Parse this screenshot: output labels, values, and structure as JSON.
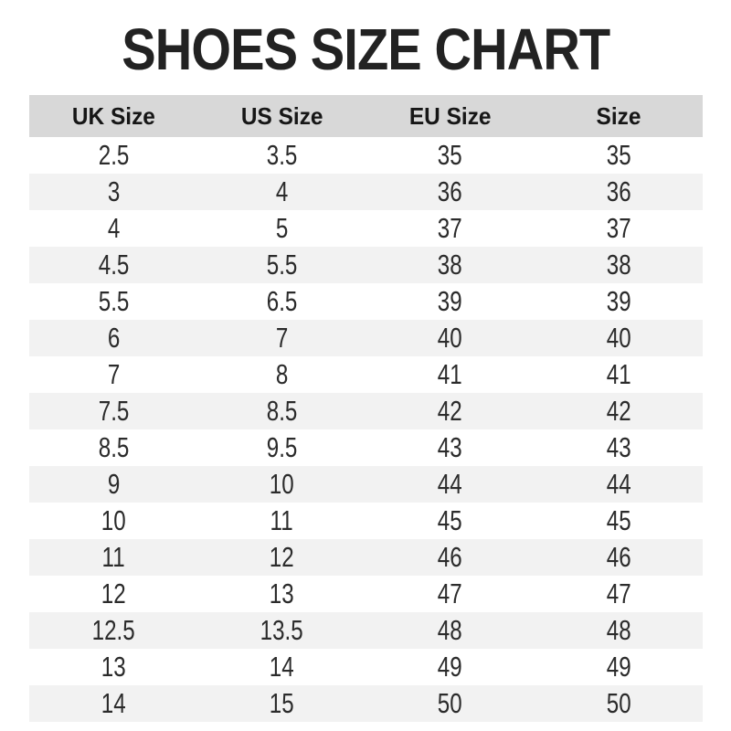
{
  "title": "SHOES SIZE CHART",
  "colors": {
    "background": "#ffffff",
    "header_bg": "#d8d8d8",
    "row_alt_bg": "#f2f2f2",
    "title_text": "#222222",
    "cell_text": "#2b2b2b"
  },
  "chart_data": {
    "type": "table",
    "title": "SHOES SIZE CHART",
    "headers": [
      "UK Size",
      "US Size",
      "EU Size",
      "Size"
    ],
    "rows": [
      [
        "2.5",
        "3.5",
        "35",
        "35"
      ],
      [
        "3",
        "4",
        "36",
        "36"
      ],
      [
        "4",
        "5",
        "37",
        "37"
      ],
      [
        "4.5",
        "5.5",
        "38",
        "38"
      ],
      [
        "5.5",
        "6.5",
        "39",
        "39"
      ],
      [
        "6",
        "7",
        "40",
        "40"
      ],
      [
        "7",
        "8",
        "41",
        "41"
      ],
      [
        "7.5",
        "8.5",
        "42",
        "42"
      ],
      [
        "8.5",
        "9.5",
        "43",
        "43"
      ],
      [
        "9",
        "10",
        "44",
        "44"
      ],
      [
        "10",
        "11",
        "45",
        "45"
      ],
      [
        "11",
        "12",
        "46",
        "46"
      ],
      [
        "12",
        "13",
        "47",
        "47"
      ],
      [
        "12.5",
        "13.5",
        "48",
        "48"
      ],
      [
        "13",
        "14",
        "49",
        "49"
      ],
      [
        "14",
        "15",
        "50",
        "50"
      ]
    ],
    "layout": {
      "header_background": "#d8d8d8",
      "alternating_row_background": "#f2f2f2",
      "first_data_row_background": "#ffffff",
      "columns": 4,
      "column_alignment": "center"
    }
  }
}
